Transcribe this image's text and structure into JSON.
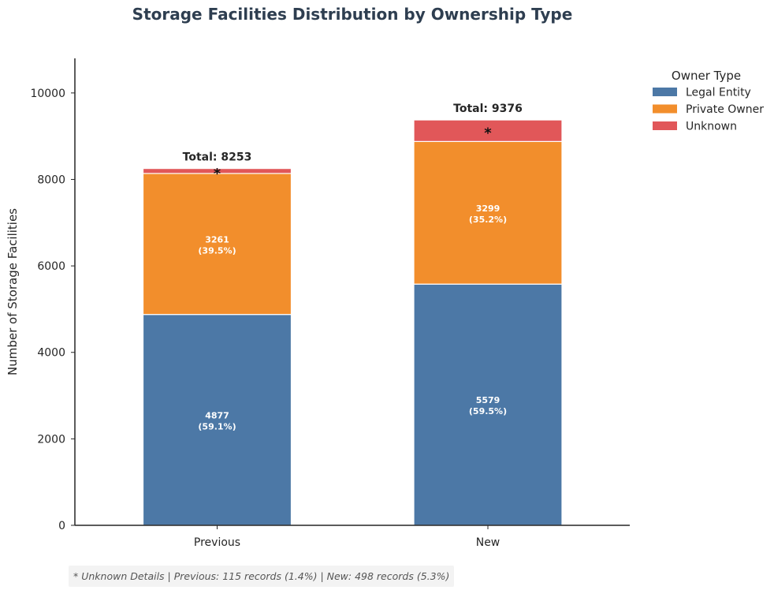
{
  "chart_data": {
    "type": "bar",
    "stacked": true,
    "title": "Storage Facilities Distribution by Ownership Type",
    "xlabel": "",
    "ylabel": "Number of Storage Facilities",
    "categories": [
      "Previous",
      "New"
    ],
    "ylim": [
      0,
      10800
    ],
    "yticks": [
      0,
      2000,
      4000,
      6000,
      8000,
      10000
    ],
    "grid": false,
    "legend": {
      "title": "Owner Type",
      "position": "outside-top-right"
    },
    "series": [
      {
        "name": "Legal Entity",
        "color": "#4c78a6",
        "values": [
          4877,
          5579
        ],
        "labels": [
          [
            "4877",
            "(59.1%)"
          ],
          [
            "5579",
            "(59.5%)"
          ]
        ]
      },
      {
        "name": "Private Owner",
        "color": "#f28e2c",
        "values": [
          3261,
          3299
        ],
        "labels": [
          [
            "3261",
            "(39.5%)"
          ],
          [
            "3299",
            "(35.2%)"
          ]
        ]
      },
      {
        "name": "Unknown",
        "color": "#e15759",
        "values": [
          115,
          498
        ],
        "labels": [
          [
            "*"
          ],
          [
            "*"
          ]
        ]
      }
    ],
    "totals": [
      "Total: 8253",
      "Total: 9376"
    ],
    "footnote": "* Unknown Details | Previous: 115 records (1.4%) | New: 498 records (5.3%)"
  }
}
